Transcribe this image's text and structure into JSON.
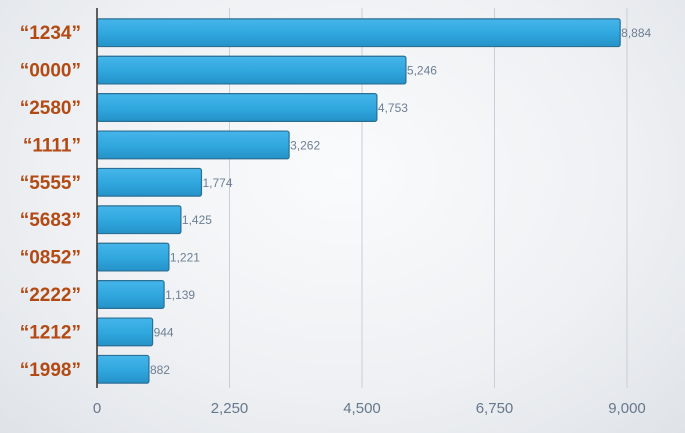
{
  "chart_data": {
    "type": "bar",
    "orientation": "horizontal",
    "title": "",
    "xlabel": "",
    "ylabel": "",
    "categories": [
      "“1234”",
      "“0000”",
      "“2580”",
      "“1111”",
      "“5555”",
      "“5683”",
      "“0852”",
      "“2222”",
      "“1212”",
      "“1998”"
    ],
    "values": [
      8884,
      5246,
      4753,
      3262,
      1774,
      1425,
      1221,
      1139,
      944,
      882
    ],
    "value_labels": [
      "8,884",
      "5,246",
      "4,753",
      "3,262",
      "1,774",
      "1,425",
      "1,221",
      "1,139",
      "944",
      "882"
    ],
    "xlim": [
      0,
      9000
    ],
    "xticks": [
      0,
      2250,
      4500,
      6750,
      9000
    ],
    "xtick_labels": [
      "0",
      "2,250",
      "4,500",
      "6,750",
      "9,000"
    ],
    "grid": "vertical",
    "legend": "none",
    "colors": {
      "bar": "#2fa6de",
      "bar_edge": "#2b6f95",
      "category_text": "#b34a14",
      "value_text": "#6d7f94",
      "tick_text": "#66788c",
      "grid": "#c9cfd6",
      "axis": "#3b3b3b"
    }
  }
}
